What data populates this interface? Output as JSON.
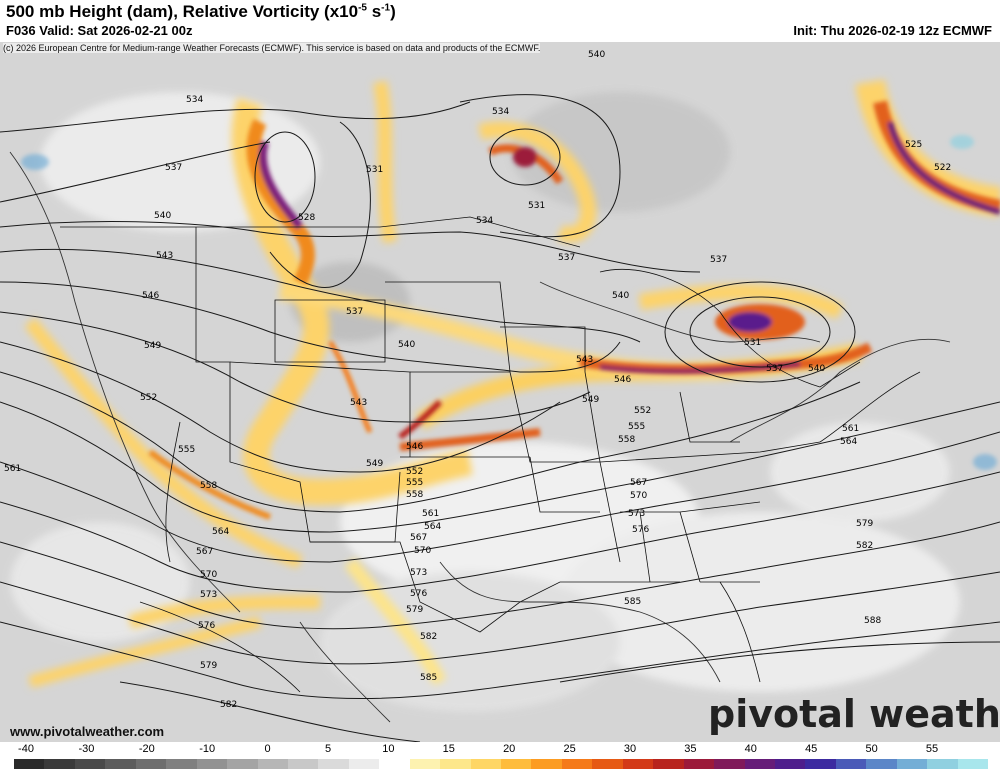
{
  "header": {
    "title_main": "500 mb Height (dam), Relative Vorticity (x10",
    "title_exp": "-5",
    "title_unit_mid": " s",
    "title_exp2": "-1",
    "title_end": ")",
    "subtitle": "F036 Valid: Sat 2026-02-21 00z",
    "init": "Init: Thu 2026-02-19 12z ECMWF"
  },
  "map": {
    "copyright": "(c) 2026 European Centre for Medium-range Weather Forecasts (ECMWF). This service is based on data and products of the ECMWF.",
    "website": "www.pivotalweather.com",
    "logo": "pivotal weather",
    "contour_labels": [
      {
        "text": "534"
      },
      {
        "text": "531"
      },
      {
        "text": "528"
      },
      {
        "text": "534"
      },
      {
        "text": "531"
      },
      {
        "text": "540"
      },
      {
        "text": "525"
      },
      {
        "text": "522"
      },
      {
        "text": "537"
      },
      {
        "text": "540"
      },
      {
        "text": "543"
      },
      {
        "text": "546"
      },
      {
        "text": "549"
      },
      {
        "text": "552"
      },
      {
        "text": "555"
      },
      {
        "text": "558"
      },
      {
        "text": "561"
      },
      {
        "text": "564"
      },
      {
        "text": "567"
      },
      {
        "text": "570"
      },
      {
        "text": "573"
      },
      {
        "text": "576"
      },
      {
        "text": "579"
      },
      {
        "text": "582"
      },
      {
        "text": "534"
      },
      {
        "text": "537"
      },
      {
        "text": "537"
      },
      {
        "text": "540"
      },
      {
        "text": "543"
      },
      {
        "text": "546"
      },
      {
        "text": "549"
      },
      {
        "text": "552"
      },
      {
        "text": "555"
      },
      {
        "text": "558"
      },
      {
        "text": "561"
      },
      {
        "text": "564"
      },
      {
        "text": "567"
      },
      {
        "text": "570"
      },
      {
        "text": "573"
      },
      {
        "text": "576"
      },
      {
        "text": "579"
      },
      {
        "text": "582"
      },
      {
        "text": "585"
      },
      {
        "text": "588"
      },
      {
        "text": "537"
      },
      {
        "text": "540"
      },
      {
        "text": "543"
      },
      {
        "text": "546"
      },
      {
        "text": "549"
      },
      {
        "text": "552"
      },
      {
        "text": "555"
      },
      {
        "text": "558"
      },
      {
        "text": "561"
      },
      {
        "text": "564"
      },
      {
        "text": "567"
      },
      {
        "text": "570"
      },
      {
        "text": "573"
      },
      {
        "text": "576"
      },
      {
        "text": "579"
      },
      {
        "text": "582"
      },
      {
        "text": "585"
      },
      {
        "text": "540"
      },
      {
        "text": "531"
      },
      {
        "text": "537"
      }
    ]
  },
  "colorbar": {
    "ticks": [
      "-40",
      "-30",
      "-20",
      "-10",
      "0",
      "5",
      "10",
      "15",
      "20",
      "25",
      "30",
      "35",
      "40",
      "45",
      "50",
      "55"
    ],
    "colors": [
      "#2a2a2a",
      "#3a3a3a",
      "#4a4a4a",
      "#5c5c5c",
      "#6e6e6e",
      "#808080",
      "#929292",
      "#a4a4a4",
      "#b6b6b6",
      "#c8c8c8",
      "#dadada",
      "#ececec",
      "#ffffff",
      "#fdf2b0",
      "#fde78a",
      "#fed665",
      "#febc3c",
      "#fc9c22",
      "#f57a19",
      "#e65a14",
      "#d33a18",
      "#b8241e",
      "#9c1a3a",
      "#801a5a",
      "#661c78",
      "#4e1e8c",
      "#3c2aa0",
      "#4a5ab8",
      "#5b86c8",
      "#74aed6",
      "#90d0e0",
      "#a8e6ec"
    ]
  }
}
